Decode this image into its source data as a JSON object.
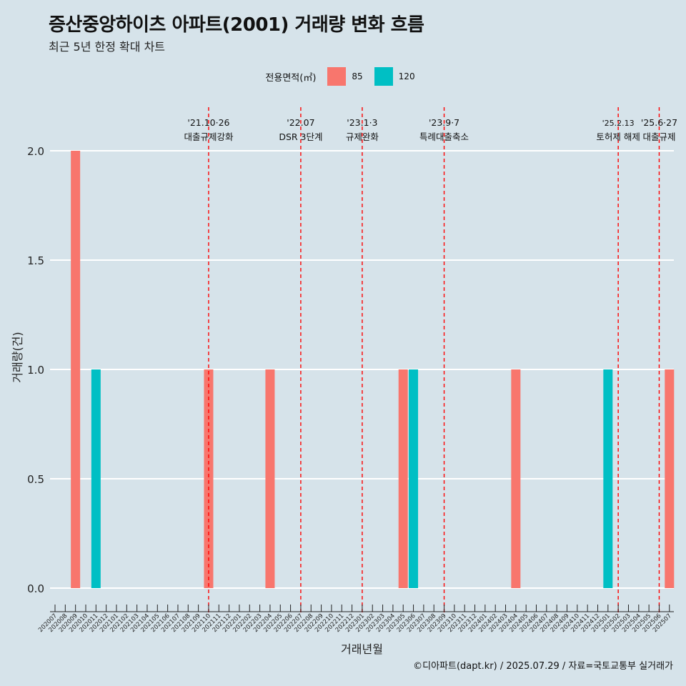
{
  "title": "증산중앙하이츠 아파트(2001) 거래량 변화 흐름",
  "subtitle": "최근 5년 한정 확대 차트",
  "caption": "©디아파트(dapt.kr) / 2025.07.29 / 자료=국토교통부 실거래가",
  "legend": {
    "title": "전용면적(㎡)",
    "items": [
      {
        "label": "85",
        "color": "#f8766d"
      },
      {
        "label": "120",
        "color": "#00bfc4"
      }
    ]
  },
  "chart_data": {
    "type": "bar",
    "xlabel": "거래년월",
    "ylabel": "거래량(건)",
    "ylim": [
      0,
      2
    ],
    "yticks": [
      "0.0",
      "0.5",
      "1.0",
      "1.5",
      "2.0"
    ],
    "grid": true,
    "categories": [
      "202007",
      "202008",
      "202009",
      "202010",
      "202011",
      "202012",
      "202101",
      "202102",
      "202103",
      "202104",
      "202105",
      "202106",
      "202107",
      "202108",
      "202109",
      "202110",
      "202111",
      "202112",
      "202201",
      "202202",
      "202203",
      "202204",
      "202205",
      "202206",
      "202207",
      "202208",
      "202209",
      "202210",
      "202211",
      "202212",
      "202301",
      "202302",
      "202303",
      "202304",
      "202305",
      "202306",
      "202307",
      "202308",
      "202309",
      "202310",
      "202311",
      "202312",
      "202401",
      "202402",
      "202403",
      "202404",
      "202405",
      "202406",
      "202407",
      "202408",
      "202409",
      "202410",
      "202411",
      "202412",
      "202501",
      "202502",
      "202503",
      "202504",
      "202505",
      "202506",
      "202507"
    ],
    "series": [
      {
        "name": "85",
        "color": "#f8766d",
        "points": [
          {
            "x": "202009",
            "y": 2
          },
          {
            "x": "202110",
            "y": 1
          },
          {
            "x": "202204",
            "y": 1
          },
          {
            "x": "202305",
            "y": 1
          },
          {
            "x": "202404",
            "y": 1
          },
          {
            "x": "202507",
            "y": 1
          }
        ]
      },
      {
        "name": "120",
        "color": "#00bfc4",
        "points": [
          {
            "x": "202011",
            "y": 1
          },
          {
            "x": "202306",
            "y": 1
          },
          {
            "x": "202501",
            "y": 1
          }
        ]
      }
    ],
    "events": [
      {
        "x": "202110",
        "date": "'21.10·26",
        "label": "대출규제강화"
      },
      {
        "x": "202207",
        "date": "'22.07",
        "label": "DSR 3단계"
      },
      {
        "x": "202301",
        "date": "'23.1·3",
        "label": "규제완화"
      },
      {
        "x": "202309",
        "date": "'23.9·7",
        "label": "특례대출축소"
      },
      {
        "x": "202502",
        "date": "'25.2.13",
        "label": "토허제 해제"
      },
      {
        "x": "202506",
        "date": "'25.6·27",
        "label": "대출규제"
      }
    ],
    "event_color": "#ff0000"
  }
}
